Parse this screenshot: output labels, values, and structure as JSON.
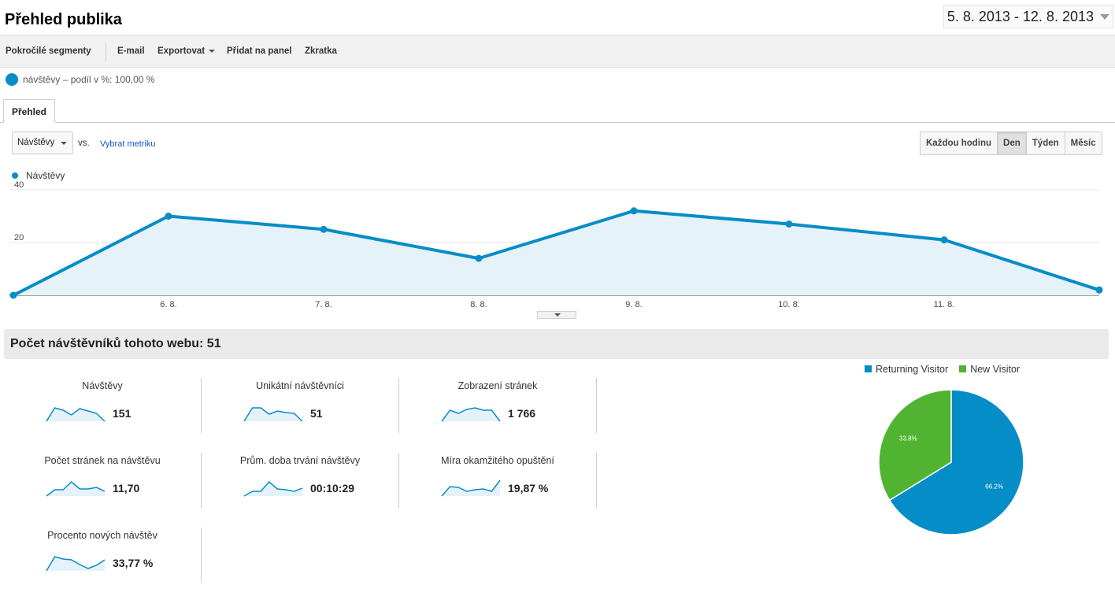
{
  "page": {
    "title": "Přehled publika",
    "date_range": "5. 8. 2013 - 12. 8. 2013"
  },
  "toolbar": {
    "segments": "Pokročilé segmenty",
    "email": "E-mail",
    "export": "Exportovat",
    "add_to_panel": "Přidat na panel",
    "shortcut": "Zkratka"
  },
  "segment": {
    "label": "návštěvy – podíl v %: 100,00 %"
  },
  "tabs": {
    "overview": "Přehled"
  },
  "metric": {
    "selected": "Návštěvy",
    "vs": "vs.",
    "pick": "Vybrat metriku"
  },
  "granularity": {
    "hour": "Každou hodinu",
    "day": "Den",
    "week": "Týden",
    "month": "Měsíc",
    "active": "day"
  },
  "chart_data": {
    "type": "area",
    "series": [
      {
        "name": "Návštěvy",
        "color": "#058dc7",
        "values": [
          0,
          30,
          25,
          14,
          32,
          27,
          21,
          2
        ]
      }
    ],
    "x": [
      "5. 8.",
      "6. 8.",
      "7. 8.",
      "8. 8.",
      "9. 8.",
      "10. 8.",
      "11. 8.",
      "12. 8."
    ],
    "x_tick_labels": [
      "6. 8.",
      "7. 8.",
      "8. 8.",
      "9. 8.",
      "10. 8.",
      "11. 8."
    ],
    "y_ticks": [
      20,
      40
    ],
    "ylim": [
      0,
      40
    ],
    "grid": true,
    "legend": "top-left"
  },
  "summary": {
    "title": "Počet návštěvníků tohoto webu: 51"
  },
  "metrics": [
    {
      "label": "Návštěvy",
      "value": "151",
      "spark": [
        0,
        17,
        14,
        8,
        16,
        13,
        10,
        0
      ]
    },
    {
      "label": "Unikátní návštěvníci",
      "value": "51",
      "spark": [
        0,
        17,
        17,
        9,
        13,
        11,
        10,
        0
      ]
    },
    {
      "label": "Zobrazení stránek",
      "value": "1 766",
      "spark": [
        0,
        14,
        10,
        15,
        17,
        14,
        14,
        0
      ]
    },
    {
      "label": "Počet stránek na návštěvu",
      "value": "11,70",
      "spark": [
        0,
        8,
        8,
        18,
        9,
        9,
        11,
        6
      ]
    },
    {
      "label": "Prům. doba trvání návštěvy",
      "value": "00:10:29",
      "spark": [
        0,
        6,
        6,
        18,
        9,
        8,
        6,
        10
      ]
    },
    {
      "label": "Míra okamžitého opuštění",
      "value": "19,87 %",
      "spark": [
        0,
        12,
        11,
        6,
        8,
        9,
        6,
        20
      ]
    },
    {
      "label": "Procento nových návštěv",
      "value": "33,77 %",
      "spark": [
        0,
        18,
        15,
        14,
        8,
        3,
        7,
        14
      ]
    }
  ],
  "pie_data": {
    "type": "pie",
    "slices": [
      {
        "name": "Returning Visitor",
        "value": 66.2,
        "label": "66.2%",
        "color": "#058dc7"
      },
      {
        "name": "New Visitor",
        "value": 33.8,
        "label": "33.8%",
        "color": "#50b432"
      }
    ]
  }
}
